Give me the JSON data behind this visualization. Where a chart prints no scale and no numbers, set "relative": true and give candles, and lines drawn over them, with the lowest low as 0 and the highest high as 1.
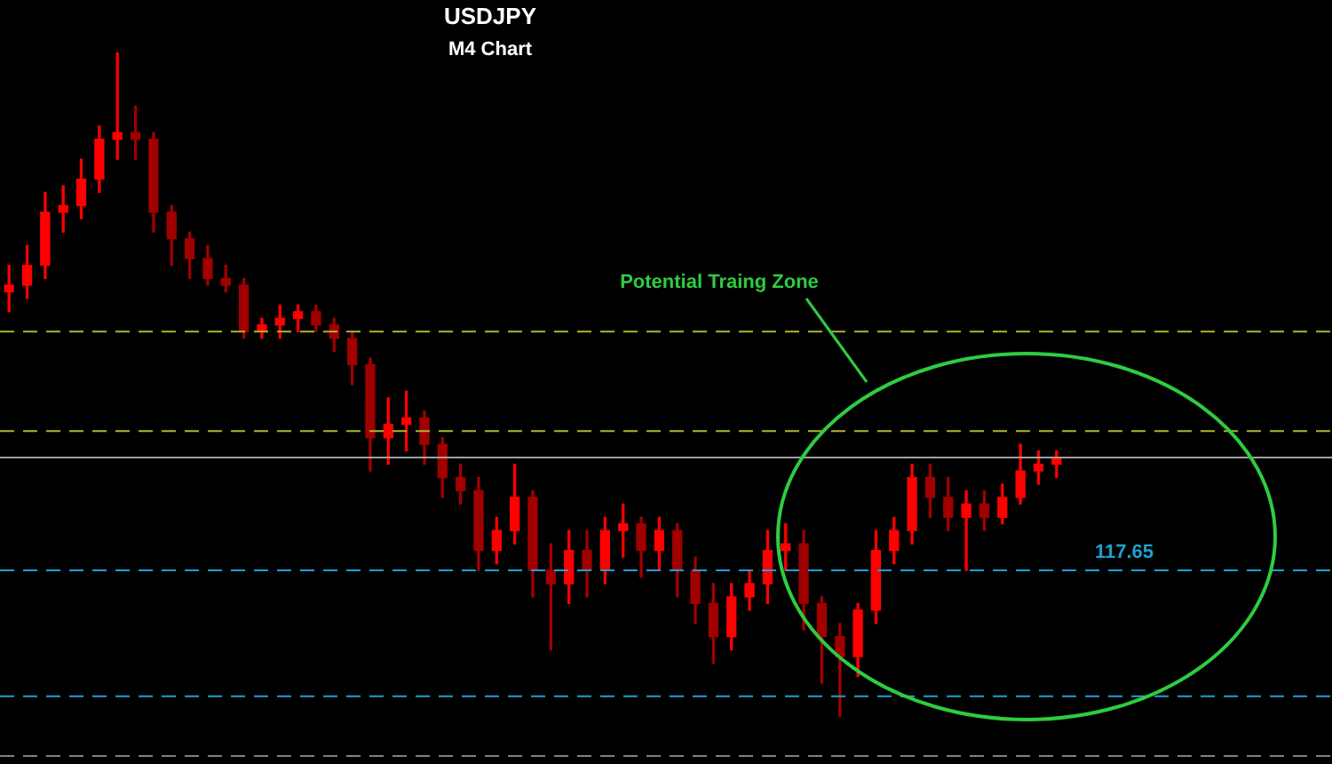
{
  "chart_data": {
    "type": "candlestick",
    "title": "USDJPY",
    "subtitle": "M4 Chart",
    "relative": true,
    "categories": [
      null,
      null,
      null,
      null,
      null,
      null,
      null,
      null,
      null,
      null,
      null,
      null,
      null,
      null,
      null,
      null,
      null,
      null,
      null,
      null,
      null,
      null,
      null,
      null,
      null,
      null,
      null,
      null,
      null,
      null,
      null,
      null,
      null,
      null,
      null,
      null,
      null,
      null,
      null,
      null,
      null,
      null,
      null,
      null,
      null,
      null,
      null,
      null,
      null,
      null,
      null,
      null,
      null,
      null,
      null,
      null,
      null,
      null,
      null
    ],
    "series": [
      {
        "colors": [
          "#ff0000",
          "#ff0000",
          "#ff0000",
          "#ff0000",
          "#ff0000",
          "#ff0000",
          "#ff0000",
          "#a00000",
          "#a00000",
          "#a00000",
          "#a00000",
          "#a00000",
          "#a00000",
          "#a00000",
          "#ff0000",
          "#ff0000",
          "#ff0000",
          "#a00000",
          "#a00000",
          "#a00000",
          "#a00000",
          "#ff0000",
          "#ff0000",
          "#a00000",
          "#a00000",
          "#a00000",
          "#a00000",
          "#ff0000",
          "#ff0000",
          "#a00000",
          "#a00000",
          "#ff0000",
          "#a00000",
          "#ff0000",
          "#ff0000",
          "#a00000",
          "#ff0000",
          "#a00000",
          "#a00000",
          "#a00000",
          "#ff0000",
          "#ff0000",
          "#ff0000",
          "#ff0000",
          "#a00000",
          "#a00000",
          "#a00000",
          "#ff0000",
          "#ff0000",
          "#ff0000",
          "#ff0000",
          "#a00000",
          "#a00000",
          "#ff0000",
          "#a00000",
          "#ff0000",
          "#ff0000",
          "#ff0000",
          "#ff0000"
        ],
        "ohlc": [
          [
            0.64,
            0.68,
            0.61,
            0.65
          ],
          [
            0.65,
            0.71,
            0.63,
            0.68
          ],
          [
            0.68,
            0.79,
            0.66,
            0.76
          ],
          [
            0.76,
            0.8,
            0.73,
            0.77
          ],
          [
            0.77,
            0.84,
            0.75,
            0.81
          ],
          [
            0.81,
            0.89,
            0.79,
            0.87
          ],
          [
            0.87,
            1.0,
            0.84,
            0.88
          ],
          [
            0.88,
            0.92,
            0.84,
            0.87
          ],
          [
            0.87,
            0.88,
            0.73,
            0.76
          ],
          [
            0.76,
            0.77,
            0.68,
            0.72
          ],
          [
            0.72,
            0.73,
            0.66,
            0.69
          ],
          [
            0.69,
            0.71,
            0.65,
            0.66
          ],
          [
            0.66,
            0.68,
            0.64,
            0.65
          ],
          [
            0.65,
            0.66,
            0.57,
            0.58
          ],
          [
            0.58,
            0.6,
            0.57,
            0.59
          ],
          [
            0.59,
            0.62,
            0.57,
            0.6
          ],
          [
            0.6,
            0.62,
            0.58,
            0.61
          ],
          [
            0.61,
            0.62,
            0.58,
            0.59
          ],
          [
            0.59,
            0.6,
            0.55,
            0.57
          ],
          [
            0.57,
            0.58,
            0.5,
            0.53
          ],
          [
            0.53,
            0.54,
            0.37,
            0.42
          ],
          [
            0.42,
            0.48,
            0.38,
            0.44
          ],
          [
            0.44,
            0.49,
            0.4,
            0.45
          ],
          [
            0.45,
            0.46,
            0.38,
            0.41
          ],
          [
            0.41,
            0.42,
            0.33,
            0.36
          ],
          [
            0.36,
            0.38,
            0.32,
            0.34
          ],
          [
            0.34,
            0.36,
            0.22,
            0.25
          ],
          [
            0.25,
            0.3,
            0.23,
            0.28
          ],
          [
            0.28,
            0.38,
            0.26,
            0.33
          ],
          [
            0.33,
            0.34,
            0.18,
            0.22
          ],
          [
            0.22,
            0.26,
            0.1,
            0.2
          ],
          [
            0.2,
            0.28,
            0.17,
            0.25
          ],
          [
            0.25,
            0.28,
            0.18,
            0.22
          ],
          [
            0.22,
            0.3,
            0.2,
            0.28
          ],
          [
            0.28,
            0.32,
            0.24,
            0.29
          ],
          [
            0.29,
            0.3,
            0.21,
            0.25
          ],
          [
            0.25,
            0.3,
            0.22,
            0.28
          ],
          [
            0.28,
            0.29,
            0.18,
            0.22
          ],
          [
            0.22,
            0.24,
            0.14,
            0.17
          ],
          [
            0.17,
            0.2,
            0.08,
            0.12
          ],
          [
            0.12,
            0.2,
            0.1,
            0.18
          ],
          [
            0.18,
            0.22,
            0.16,
            0.2
          ],
          [
            0.2,
            0.28,
            0.17,
            0.25
          ],
          [
            0.25,
            0.29,
            0.22,
            0.26
          ],
          [
            0.26,
            0.28,
            0.13,
            0.17
          ],
          [
            0.17,
            0.18,
            0.05,
            0.12
          ],
          [
            0.12,
            0.14,
            0.0,
            0.09
          ],
          [
            0.09,
            0.17,
            0.06,
            0.16
          ],
          [
            0.16,
            0.28,
            0.14,
            0.25
          ],
          [
            0.25,
            0.3,
            0.23,
            0.28
          ],
          [
            0.28,
            0.38,
            0.26,
            0.36
          ],
          [
            0.36,
            0.38,
            0.3,
            0.33
          ],
          [
            0.33,
            0.36,
            0.28,
            0.3
          ],
          [
            0.3,
            0.34,
            0.22,
            0.32
          ],
          [
            0.32,
            0.34,
            0.28,
            0.3
          ],
          [
            0.3,
            0.35,
            0.29,
            0.33
          ],
          [
            0.33,
            0.41,
            0.32,
            0.37
          ],
          [
            0.37,
            0.4,
            0.35,
            0.38
          ],
          [
            0.38,
            0.4,
            0.36,
            0.39
          ]
        ]
      }
    ],
    "ref_lines": [
      {
        "axis": "y",
        "value": 0.58,
        "color": "#b4b428",
        "line_style": "dashed"
      },
      {
        "axis": "y",
        "value": 0.43,
        "color": "#b4b428",
        "line_style": "dashed"
      },
      {
        "axis": "y",
        "value": 0.39,
        "color": "#a0a0a0",
        "line_style": "solid"
      },
      {
        "axis": "y",
        "value": 0.22,
        "color": "#1ea0d2",
        "line_style": "dashed"
      },
      {
        "axis": "y",
        "value": 0.03,
        "color": "#1ea0d2",
        "line_style": "dashed"
      },
      {
        "axis": "y",
        "value": -0.06,
        "color": "#808080",
        "line_style": "dashed"
      }
    ],
    "annotations": [
      "Potential Traing Zone",
      "117.65"
    ]
  }
}
